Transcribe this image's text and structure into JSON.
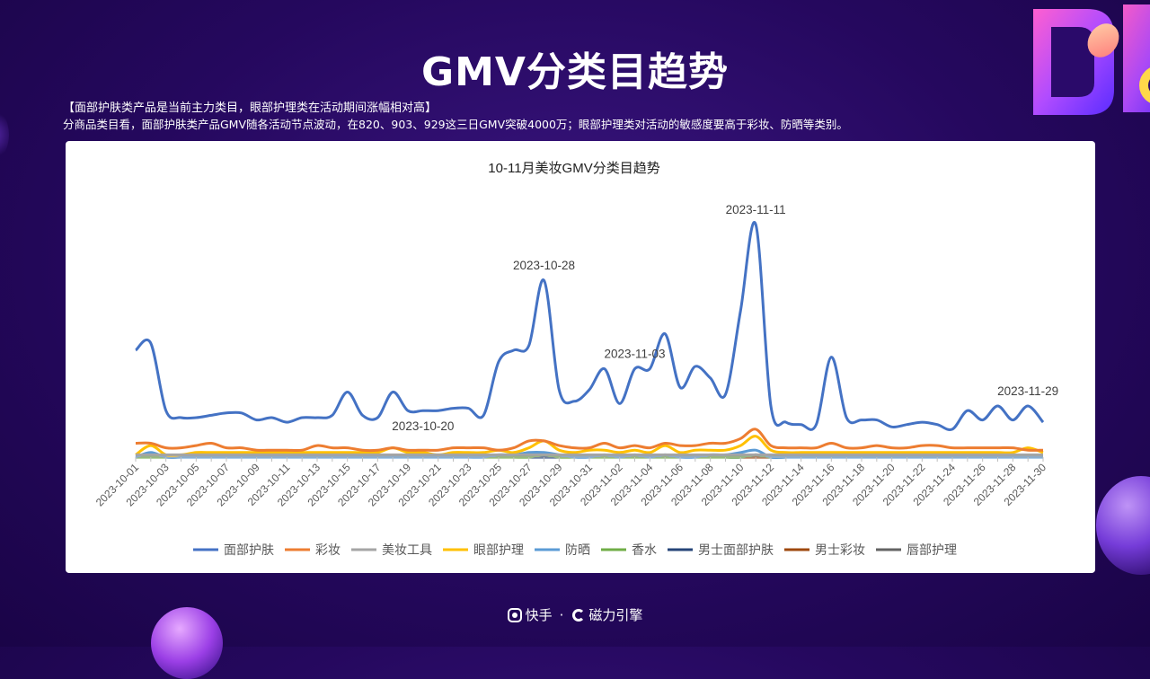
{
  "page": {
    "title": "GMV分类目趋势",
    "subtitle_head": "【面部护肤类产品是当前主力类目，眼部护理类在活动期间涨幅相对高】",
    "subtitle_body": "分商品类目看，面部护肤类产品GMV随各活动节点波动，在820、903、929这三日GMV突破4000万；眼部护理类对活动的敏感度要高于彩妆、防晒等类别。",
    "footer_brand1": "快手",
    "footer_sep": "·",
    "footer_brand2": "磁力引擎"
  },
  "chart_data": {
    "type": "line",
    "title": "10-11月美妆GMV分类目趋势",
    "xlabel": "",
    "ylabel": "",
    "ylim": [
      0,
      100
    ],
    "y_axis_labels_shown": false,
    "grid": false,
    "legend_position": "bottom",
    "x": [
      "2023-10-01",
      "2023-10-02",
      "2023-10-03",
      "2023-10-04",
      "2023-10-05",
      "2023-10-06",
      "2023-10-07",
      "2023-10-08",
      "2023-10-09",
      "2023-10-10",
      "2023-10-11",
      "2023-10-12",
      "2023-10-13",
      "2023-10-14",
      "2023-10-15",
      "2023-10-16",
      "2023-10-17",
      "2023-10-18",
      "2023-10-19",
      "2023-10-20",
      "2023-10-21",
      "2023-10-22",
      "2023-10-23",
      "2023-10-24",
      "2023-10-25",
      "2023-10-26",
      "2023-10-27",
      "2023-10-28",
      "2023-10-29",
      "2023-10-30",
      "2023-10-31",
      "2023-11-01",
      "2023-11-02",
      "2023-11-03",
      "2023-11-04",
      "2023-11-05",
      "2023-11-06",
      "2023-11-07",
      "2023-11-08",
      "2023-11-09",
      "2023-11-10",
      "2023-11-11",
      "2023-11-12",
      "2023-11-13",
      "2023-11-14",
      "2023-11-15",
      "2023-11-16",
      "2023-11-17",
      "2023-11-18",
      "2023-11-19",
      "2023-11-20",
      "2023-11-21",
      "2023-11-22",
      "2023-11-23",
      "2023-11-24",
      "2023-11-25",
      "2023-11-26",
      "2023-11-27",
      "2023-11-28",
      "2023-11-29",
      "2023-11-30"
    ],
    "x_tick_labels": [
      "2023-10-01",
      "2023-10-03",
      "2023-10-05",
      "2023-10-07",
      "2023-10-09",
      "2023-10-11",
      "2023-10-13",
      "2023-10-15",
      "2023-10-17",
      "2023-10-19",
      "2023-10-21",
      "2023-10-23",
      "2023-10-25",
      "2023-10-27",
      "2023-10-29",
      "2023-10-31",
      "2023-11-02",
      "2023-11-04",
      "2023-11-06",
      "2023-11-08",
      "2023-11-10",
      "2023-11-12",
      "2023-11-14",
      "2023-11-16",
      "2023-11-18",
      "2023-11-20",
      "2023-11-22",
      "2023-11-24",
      "2023-11-26",
      "2023-11-28",
      "2023-11-30"
    ],
    "annotations": [
      {
        "x": "2023-10-20",
        "text": "2023-10-20",
        "series": "面部护肤"
      },
      {
        "x": "2023-10-28",
        "text": "2023-10-28",
        "series": "面部护肤"
      },
      {
        "x": "2023-11-03",
        "text": "2023-11-03",
        "series": "面部护肤"
      },
      {
        "x": "2023-11-11",
        "text": "2023-11-11",
        "series": "面部护肤"
      },
      {
        "x": "2023-11-29",
        "text": "2023-11-29",
        "series": "面部护肤"
      }
    ],
    "series": [
      {
        "name": "面部护肤",
        "color": "#4472C4",
        "values": [
          46,
          49,
          20,
          17,
          17,
          18,
          19,
          19,
          16,
          17,
          15,
          17,
          17,
          18,
          28,
          18,
          17,
          28,
          20,
          20,
          20,
          21,
          21,
          18,
          41,
          46,
          48,
          76,
          29,
          24,
          29,
          38,
          23,
          38,
          38,
          53,
          30,
          39,
          34,
          27,
          63,
          100,
          22,
          15,
          14,
          14,
          43,
          17,
          16,
          16,
          13,
          14,
          15,
          14,
          12,
          20,
          16,
          22,
          16,
          22,
          15
        ]
      },
      {
        "name": "彩妆",
        "color": "#ED7D31",
        "values": [
          6,
          6,
          4,
          4,
          5,
          6,
          4,
          4,
          3,
          3,
          3,
          3,
          5,
          4,
          4,
          3,
          3,
          4,
          3,
          3,
          3,
          4,
          4,
          4,
          3,
          4,
          7,
          7,
          5,
          4,
          4,
          6,
          4,
          5,
          4,
          6,
          5,
          5,
          6,
          6,
          8,
          12,
          5,
          4,
          4,
          4,
          6,
          4,
          4,
          5,
          4,
          4,
          5,
          5,
          4,
          4,
          4,
          4,
          4,
          3,
          3
        ]
      },
      {
        "name": "美妆工具",
        "color": "#A5A5A5",
        "values": [
          1,
          1,
          1,
          1,
          1,
          1,
          1,
          1,
          1,
          1,
          1,
          1,
          1,
          1,
          1,
          1,
          1,
          1,
          1,
          1,
          1,
          1,
          1,
          1,
          1,
          1,
          1,
          1,
          1,
          1,
          1,
          1,
          1,
          1,
          1,
          1,
          1,
          1,
          1,
          1,
          1,
          1,
          1,
          1,
          1,
          1,
          1,
          1,
          1,
          1,
          1,
          1,
          1,
          1,
          1,
          1,
          1,
          1,
          1,
          1,
          1
        ]
      },
      {
        "name": "眼部护理",
        "color": "#FFC000",
        "values": [
          1,
          5,
          1,
          1,
          2,
          2,
          2,
          2,
          2,
          2,
          2,
          2,
          2,
          2,
          2,
          2,
          2,
          4,
          2,
          2,
          1,
          2,
          2,
          2,
          3,
          2,
          4,
          7,
          3,
          2,
          3,
          3,
          2,
          3,
          2,
          5,
          2,
          3,
          3,
          3,
          5,
          9,
          3,
          2,
          2,
          2,
          2,
          2,
          2,
          2,
          2,
          2,
          2,
          2,
          2,
          2,
          2,
          2,
          2,
          4,
          2
        ]
      },
      {
        "name": "防晒",
        "color": "#5B9BD5",
        "values": [
          0,
          2,
          0,
          0,
          0,
          0,
          0,
          0,
          0,
          0,
          0,
          0,
          0,
          0,
          0,
          0,
          0,
          0,
          0,
          0,
          0,
          0,
          0,
          0,
          1,
          1,
          2,
          2,
          1,
          0,
          0,
          1,
          0,
          1,
          0,
          1,
          0,
          0,
          1,
          1,
          2,
          3,
          0,
          0,
          0,
          0,
          0,
          0,
          0,
          0,
          0,
          0,
          0,
          0,
          0,
          0,
          0,
          0,
          0,
          0,
          0
        ]
      },
      {
        "name": "香水",
        "color": "#70AD47",
        "values": [
          0,
          0,
          0,
          0,
          0,
          0,
          0,
          0,
          0,
          0,
          0,
          0,
          0,
          0,
          0,
          0,
          0,
          0,
          0,
          0,
          0,
          0,
          0,
          0,
          0,
          0,
          0,
          1,
          0,
          0,
          0,
          0,
          0,
          0,
          0,
          0,
          0,
          0,
          0,
          0,
          0,
          1,
          0,
          0,
          0,
          0,
          0,
          0,
          0,
          0,
          0,
          0,
          0,
          0,
          0,
          0,
          0,
          0,
          0,
          0,
          0
        ]
      },
      {
        "name": "男士面部护肤",
        "color": "#264478",
        "values": [
          0,
          0,
          0,
          0,
          0,
          0,
          0,
          0,
          0,
          0,
          0,
          0,
          0,
          0,
          0,
          0,
          0,
          0,
          0,
          0,
          0,
          0,
          0,
          0,
          0,
          0,
          0,
          0,
          0,
          0,
          0,
          0,
          0,
          0,
          0,
          0,
          0,
          0,
          0,
          0,
          0,
          1,
          0,
          0,
          0,
          0,
          0,
          0,
          0,
          0,
          0,
          0,
          0,
          0,
          0,
          0,
          0,
          0,
          0,
          0,
          0
        ]
      },
      {
        "name": "男士彩妆",
        "color": "#9E480E",
        "values": [
          0,
          0,
          0,
          0,
          0,
          0,
          0,
          0,
          0,
          0,
          0,
          0,
          0,
          0,
          0,
          0,
          0,
          0,
          0,
          0,
          0,
          0,
          0,
          0,
          0,
          0,
          0,
          0,
          0,
          0,
          0,
          0,
          0,
          0,
          0,
          0,
          0,
          0,
          0,
          0,
          0,
          0,
          0,
          0,
          0,
          0,
          0,
          0,
          0,
          0,
          0,
          0,
          0,
          0,
          0,
          0,
          0,
          0,
          0,
          0,
          0
        ]
      },
      {
        "name": "唇部护理",
        "color": "#636363",
        "values": [
          0,
          0,
          0,
          0,
          0,
          0,
          0,
          0,
          0,
          0,
          0,
          0,
          0,
          0,
          0,
          0,
          0,
          0,
          0,
          0,
          0,
          0,
          0,
          0,
          0,
          0,
          0,
          0,
          0,
          0,
          0,
          0,
          0,
          0,
          0,
          0,
          0,
          0,
          0,
          0,
          0,
          0,
          0,
          0,
          0,
          0,
          0,
          0,
          0,
          0,
          0,
          0,
          0,
          0,
          0,
          0,
          0,
          0,
          0,
          0,
          0
        ]
      }
    ]
  }
}
